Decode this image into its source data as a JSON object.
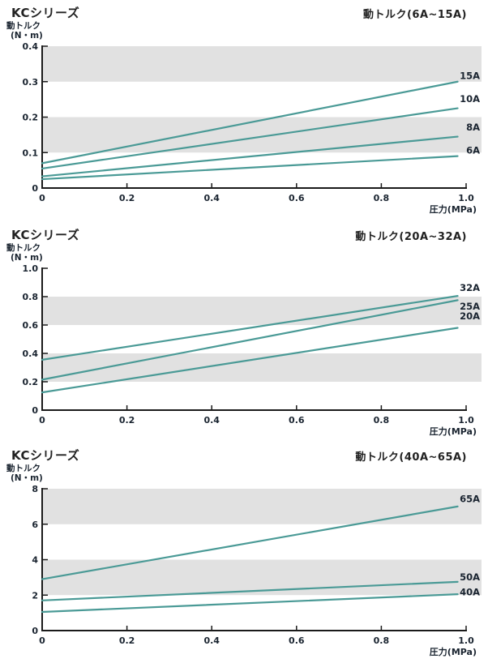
{
  "page_title": "KC series dynamic torque charts",
  "colors": {
    "line": "#4A9A96",
    "band": "#E1E1E1",
    "axis": "#1A1A1A",
    "text": "#1A2430"
  },
  "chart_data": [
    {
      "type": "line",
      "series_title": "KCシリーズ",
      "title": "動トルク(6A~15A)",
      "ylabel": "動トルク",
      "ylabel_units": "(N・m)",
      "xlabel": "圧力(MPa)",
      "xlim": [
        0,
        1.0
      ],
      "ylim": [
        0,
        0.4
      ],
      "xticks": [
        "0",
        "0.2",
        "0.4",
        "0.6",
        "0.8",
        "1.0"
      ],
      "yticks": [
        "0",
        "0.1",
        "0.2",
        "0.3",
        "0.4"
      ],
      "bands": [
        [
          0.1,
          0.2
        ],
        [
          0.3,
          0.4
        ]
      ],
      "grid": "off",
      "legend_position": "end-of-line",
      "series": [
        {
          "name": "15A",
          "x": [
            0,
            0.98
          ],
          "y": [
            0.07,
            0.3
          ],
          "label_y": 0.315
        },
        {
          "name": "10A",
          "x": [
            0,
            0.98
          ],
          "y": [
            0.055,
            0.225
          ],
          "label_y": 0.25
        },
        {
          "name": "8A",
          "x": [
            0,
            0.98
          ],
          "y": [
            0.033,
            0.145
          ],
          "label_y": 0.17
        },
        {
          "name": "6A",
          "x": [
            0,
            0.98
          ],
          "y": [
            0.025,
            0.09
          ],
          "label_y": 0.105
        }
      ]
    },
    {
      "type": "line",
      "series_title": "KCシリーズ",
      "title": "動トルク(20A~32A)",
      "ylabel": "動トルク",
      "ylabel_units": "(N・m)",
      "xlabel": "圧力(MPa)",
      "xlim": [
        0,
        1.0
      ],
      "ylim": [
        0,
        1.0
      ],
      "xticks": [
        "0",
        "0.2",
        "0.4",
        "0.6",
        "0.8",
        "1.0"
      ],
      "yticks": [
        "0",
        "0.2",
        "0.4",
        "0.6",
        "0.8",
        "1.0"
      ],
      "bands": [
        [
          0.2,
          0.4
        ],
        [
          0.6,
          0.8
        ]
      ],
      "grid": "off",
      "legend_position": "end-of-line",
      "series": [
        {
          "name": "32A",
          "x": [
            0,
            0.98
          ],
          "y": [
            0.355,
            0.805
          ],
          "label_y": 0.86
        },
        {
          "name": "25A",
          "x": [
            0,
            0.98
          ],
          "y": [
            0.215,
            0.775
          ],
          "label_y": 0.73
        },
        {
          "name": "20A",
          "x": [
            0,
            0.98
          ],
          "y": [
            0.125,
            0.58
          ],
          "label_y": 0.66
        }
      ]
    },
    {
      "type": "line",
      "series_title": "KCシリーズ",
      "title": "動トルク(40A~65A)",
      "ylabel": "動トルク",
      "ylabel_units": "(N・m)",
      "xlabel": "圧力(MPa)",
      "xlim": [
        0,
        1.0
      ],
      "ylim": [
        0,
        8
      ],
      "xticks": [
        "0",
        "0.2",
        "0.4",
        "0.6",
        "0.8",
        "1.0"
      ],
      "yticks": [
        "0",
        "2",
        "4",
        "6",
        "8"
      ],
      "bands": [
        [
          2,
          4
        ],
        [
          6,
          8
        ]
      ],
      "grid": "off",
      "legend_position": "end-of-line",
      "series": [
        {
          "name": "65A",
          "x": [
            0,
            0.98
          ],
          "y": [
            2.9,
            7.0
          ],
          "label_y": 7.4
        },
        {
          "name": "50A",
          "x": [
            0,
            0.98
          ],
          "y": [
            1.7,
            2.75
          ],
          "label_y": 3.0
        },
        {
          "name": "40A",
          "x": [
            0,
            0.98
          ],
          "y": [
            1.05,
            2.05
          ],
          "label_y": 2.15
        }
      ]
    }
  ]
}
